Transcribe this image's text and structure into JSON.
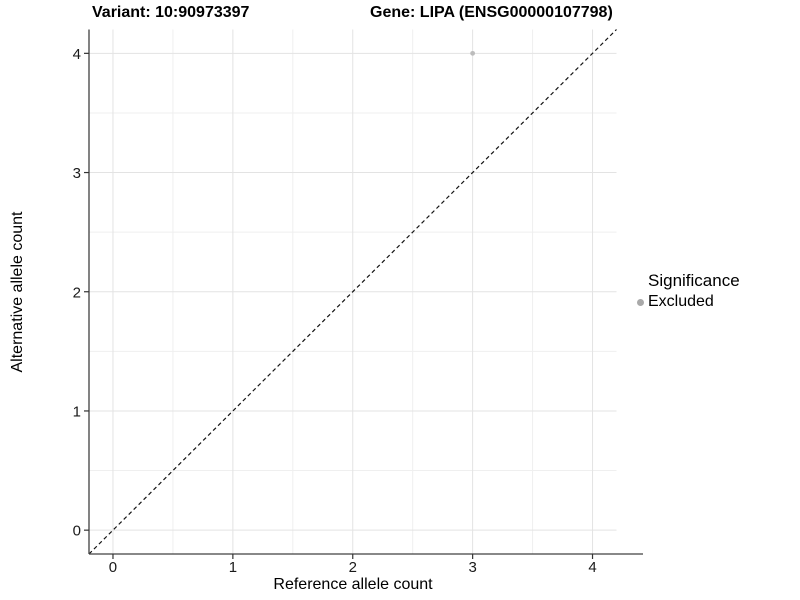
{
  "header": {
    "variant_title": "Variant: 10:90973397",
    "gene_title": "Gene: LIPA (ENSG00000107798)"
  },
  "legend": {
    "title": "Significance",
    "items": [
      {
        "label": "Excluded",
        "color": "#a9a9a9"
      }
    ]
  },
  "chart_data": {
    "type": "scatter",
    "title": "Variant: 10:90973397   Gene: LIPA (ENSG00000107798)",
    "xlabel": "Reference allele count",
    "ylabel": "Alternative allele count",
    "xlim": [
      -0.2,
      4.2
    ],
    "ylim": [
      -0.2,
      4.2
    ],
    "x_ticks": [
      0,
      1,
      2,
      3,
      4
    ],
    "y_ticks": [
      0,
      1,
      2,
      3,
      4
    ],
    "x_minor": [
      0.5,
      1.5,
      2.5,
      3.5
    ],
    "y_minor": [
      0.5,
      1.5,
      2.5,
      3.5
    ],
    "grid": "major+minor",
    "legend_position": "right",
    "identity_line": {
      "style": "dashed",
      "from": [
        -0.2,
        -0.2
      ],
      "to": [
        4.2,
        4.2
      ]
    },
    "series": [
      {
        "name": "Excluded",
        "color": "#bcbcbc",
        "points": [
          {
            "x": 3,
            "y": 4
          }
        ]
      }
    ],
    "colors": {
      "grid_major": "#e3e3e3",
      "grid_minor": "#efefef",
      "axis_line": "#404040",
      "tick_mark": "#333333",
      "identity_line": "#141414",
      "point": "#bcbcbc"
    }
  }
}
